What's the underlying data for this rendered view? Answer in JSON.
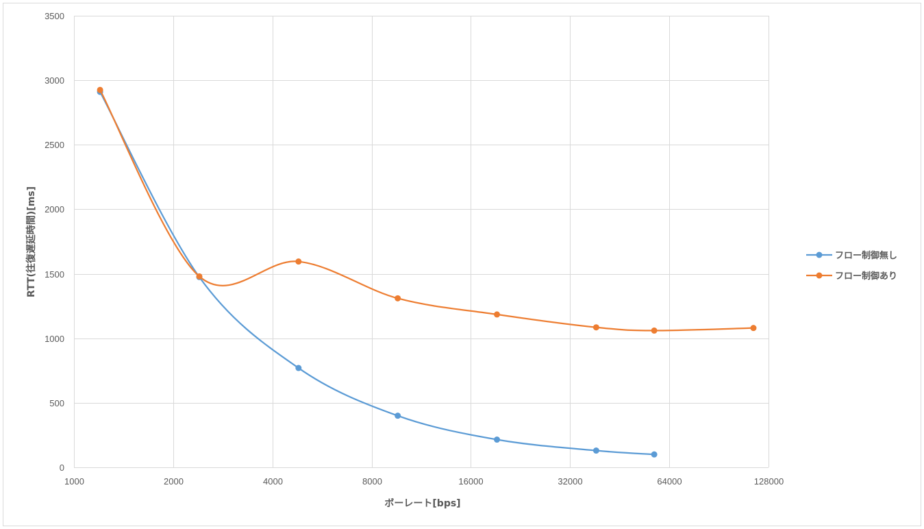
{
  "chart_data": {
    "type": "line",
    "xlabel": "ボーレート[bps]",
    "ylabel": "RTT(往復遅延時間)[ms]",
    "x_scale": "log2",
    "xlim": [
      1000,
      128000
    ],
    "ylim": [
      0,
      3500
    ],
    "x_ticks": [
      "1000",
      "2000",
      "4000",
      "8000",
      "16000",
      "32000",
      "64000",
      "128000"
    ],
    "y_ticks": [
      "0",
      "500",
      "1000",
      "1500",
      "2000",
      "2500",
      "3000",
      "3500"
    ],
    "grid": true,
    "smooth": true,
    "legend_position": "right",
    "series": [
      {
        "name": "フロー制御無し",
        "color": "#5B9BD5",
        "x": [
          1200,
          2400,
          4800,
          9600,
          19200,
          38400,
          57600
        ],
        "y": [
          2910,
          1475,
          770,
          400,
          215,
          130,
          100
        ]
      },
      {
        "name": "フロー制御あり",
        "color": "#ED7D31",
        "x": [
          1200,
          2400,
          4800,
          9600,
          19200,
          38400,
          57600,
          115200
        ],
        "y": [
          2925,
          1480,
          1595,
          1310,
          1185,
          1085,
          1060,
          1080
        ]
      }
    ]
  }
}
